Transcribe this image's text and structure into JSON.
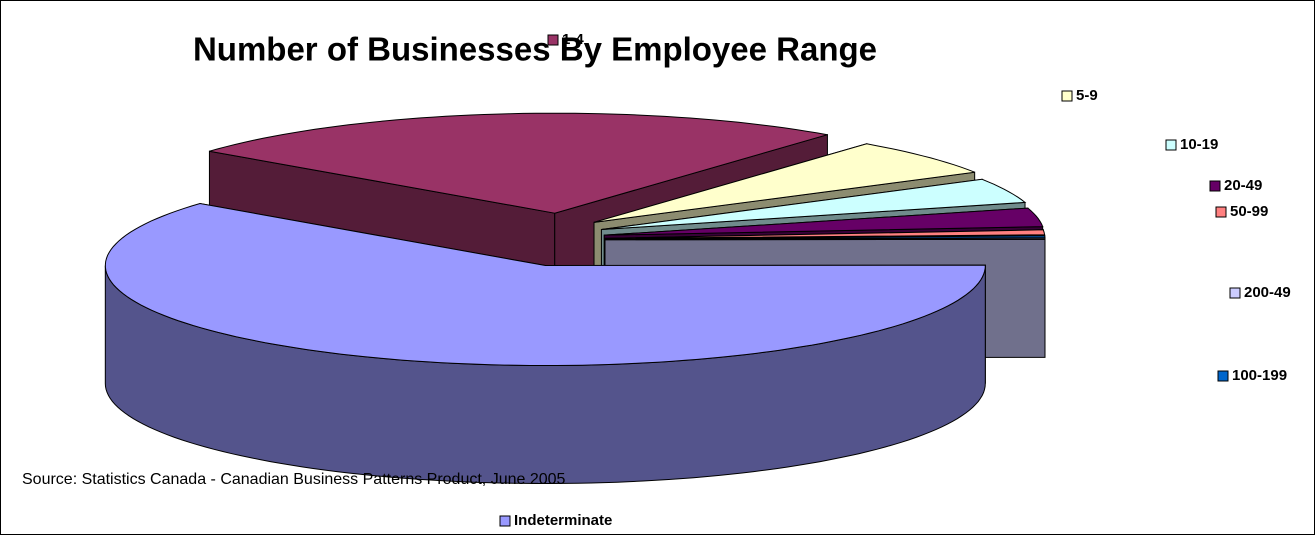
{
  "chart_data": {
    "type": "pie3d",
    "title": "Number of Businesses By Employee Range",
    "annotation": "Source: Statistics Canada - Canadian Business Patterns Product, June 2005",
    "categories": [
      "1-4",
      "5-9",
      "10-19",
      "20-49",
      "50-99",
      "100-199",
      "200-49",
      "Indeterminate"
    ],
    "values": [
      25,
      6,
      4,
      3,
      0.8,
      0.3,
      0.2,
      60.7
    ],
    "colors": [
      "#993366",
      "#ffffcc",
      "#ccffff",
      "#660066",
      "#ff8080",
      "#0066cc",
      "#ccccff",
      "#9999ff"
    ]
  }
}
